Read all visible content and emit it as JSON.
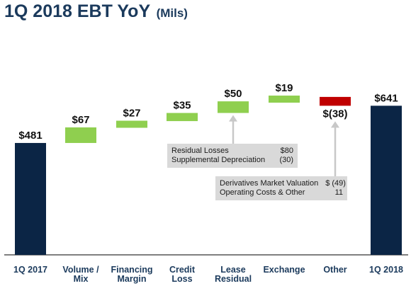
{
  "title": {
    "main": "1Q 2018 EBT YoY",
    "sub": "(Mils)"
  },
  "chart_data": {
    "type": "bar",
    "subtype": "waterfall",
    "categories": [
      [
        "1Q 2017"
      ],
      [
        "Volume /",
        "Mix"
      ],
      [
        "Financing",
        "Margin"
      ],
      [
        "Credit",
        "Loss"
      ],
      [
        "Lease",
        "Residual"
      ],
      [
        "Exchange"
      ],
      [
        "Other"
      ],
      [
        "1Q 2018"
      ]
    ],
    "values": [
      481,
      67,
      27,
      35,
      50,
      19,
      -38,
      641
    ],
    "kinds": [
      "total",
      "increase",
      "increase",
      "increase",
      "increase",
      "increase",
      "decrease",
      "total"
    ],
    "value_labels": [
      "$481",
      "$67",
      "$27",
      "$35",
      "$50",
      "$19",
      "$(38)",
      "$641"
    ],
    "ylim": [
      0,
      700
    ],
    "grid": false,
    "colors": {
      "total": "#0b2545",
      "increase": "#8fcf4f",
      "decrease": "#c00000",
      "axis": "#333333",
      "callout_arrow": "#c8c8c8"
    }
  },
  "annotations": [
    {
      "target": "Lease Residual",
      "rows": [
        {
          "label": "Residual Losses",
          "value": "$80"
        },
        {
          "label": "Supplemental Depreciation",
          "value": "(30)"
        }
      ]
    },
    {
      "target": "Other",
      "rows": [
        {
          "label": "Derivatives Market Valuation",
          "value": "$ (49)"
        },
        {
          "label": "Operating Costs & Other",
          "value": "11"
        }
      ]
    }
  ]
}
